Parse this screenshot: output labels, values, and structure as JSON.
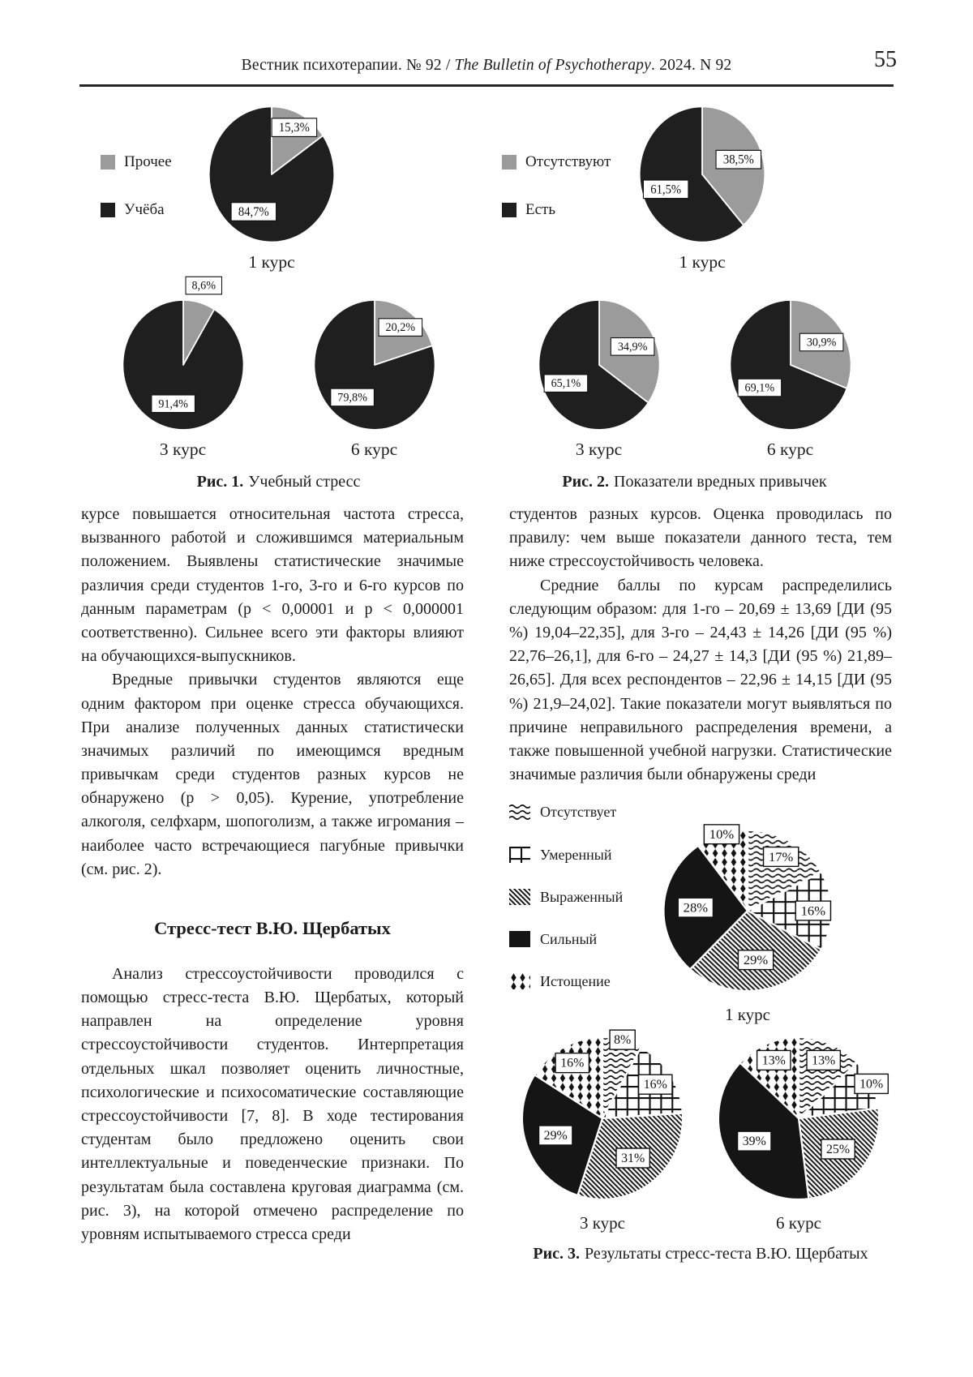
{
  "header": {
    "title_ru": "Вестник психотерапии. № 92  /",
    "title_en": "The Bulletin of Psychotherapy",
    "title_tail": ". 2024. N 92",
    "page_number": "55"
  },
  "chart_data": [
    {
      "type": "pie",
      "figure_label": "Рис. 1.",
      "figure_caption": "Учебный стресс",
      "units": "%",
      "legend_position": "left",
      "label_fs": 19,
      "palette": {
        "gray": "#9b9b9b",
        "black": "#1f1f1f"
      },
      "legend": [
        {
          "label": "Прочее",
          "fill": "gray"
        },
        {
          "label": "Учёба",
          "fill": "black"
        }
      ],
      "pies": [
        {
          "label": "1 курс",
          "slices": [
            {
              "name": "Прочее",
              "text": "15,3%",
              "value": 15.3,
              "fill": "gray"
            },
            {
              "name": "Учёба",
              "text": "84,7%",
              "value": 84.7,
              "fill": "black"
            }
          ]
        },
        {
          "label": "3 курс",
          "slices": [
            {
              "name": "Прочее",
              "text": "8,6%",
              "value": 8.6,
              "fill": "gray",
              "lr": 1.27
            },
            {
              "name": "Учёба",
              "text": "91,4%",
              "value": 91.4,
              "fill": "black"
            }
          ]
        },
        {
          "label": "6 курс",
          "slices": [
            {
              "name": "Прочее",
              "text": "20,2%",
              "value": 20.2,
              "fill": "gray",
              "lr": 0.72
            },
            {
              "name": "Учёба",
              "text": "79,8%",
              "value": 79.8,
              "fill": "black"
            }
          ]
        }
      ]
    },
    {
      "type": "pie",
      "figure_label": "Рис. 2.",
      "figure_caption": "Показатели вредных привычек",
      "units": "%",
      "legend_position": "left",
      "label_fs": 19,
      "palette": {
        "gray": "#9b9b9b",
        "black": "#1f1f1f"
      },
      "legend": [
        {
          "label": "Отсутствуют",
          "fill": "gray"
        },
        {
          "label": "Есть",
          "fill": "black"
        }
      ],
      "pies": [
        {
          "label": "1 курс",
          "slices": [
            {
              "name": "Отсутствуют",
              "text": "38,5%",
              "value": 38.5,
              "fill": "gray"
            },
            {
              "name": "Есть",
              "text": "61,5%",
              "value": 61.5,
              "fill": "black"
            }
          ]
        },
        {
          "label": "3 курс",
          "slices": [
            {
              "name": "Отсутствуют",
              "text": "34,9%",
              "value": 34.9,
              "fill": "gray"
            },
            {
              "name": "Есть",
              "text": "65,1%",
              "value": 65.1,
              "fill": "black"
            }
          ]
        },
        {
          "label": "6 курс",
          "slices": [
            {
              "name": "Отсутствуют",
              "text": "30,9%",
              "value": 30.9,
              "fill": "gray"
            },
            {
              "name": "Есть",
              "text": "69,1%",
              "value": 69.1,
              "fill": "black"
            }
          ]
        }
      ]
    },
    {
      "type": "pie",
      "figure_label": "Рис. 3.",
      "figure_caption": "Результаты стресс-теста В.Ю. Щербатых",
      "units": "%",
      "legend_position": "left",
      "label_fs": 16,
      "palette": {
        "solid": "#151515"
      },
      "legend": [
        {
          "label": "Отсутствует",
          "fill": "waves"
        },
        {
          "label": "Умеренный",
          "fill": "grid"
        },
        {
          "label": "Выраженный",
          "fill": "diag"
        },
        {
          "label": "Сильный",
          "fill": "solid"
        },
        {
          "label": "Истощение",
          "fill": "diamonds"
        }
      ],
      "pies": [
        {
          "label": "1 курс",
          "slices": [
            {
              "name": "Отсутствует",
              "text": "17%",
              "value": 17,
              "fill": "waves"
            },
            {
              "name": "Умеренный",
              "text": "16%",
              "value": 16,
              "fill": "grid"
            },
            {
              "name": "Выраженный",
              "text": "29%",
              "value": 29,
              "fill": "diag"
            },
            {
              "name": "Сильный",
              "text": "28%",
              "value": 28,
              "fill": "solid"
            },
            {
              "name": "Истощение",
              "text": "10%",
              "value": 10,
              "fill": "diamonds"
            }
          ]
        },
        {
          "label": "3 курс",
          "slices": [
            {
              "name": "Отсутствует",
              "text": "8%",
              "value": 8,
              "fill": "waves"
            },
            {
              "name": "Умеренный",
              "text": "16%",
              "value": 16,
              "fill": "grid"
            },
            {
              "name": "Выраженный",
              "text": "31%",
              "value": 31,
              "fill": "diag"
            },
            {
              "name": "Сильный",
              "text": "29%",
              "value": 29,
              "fill": "solid"
            },
            {
              "name": "Истощение",
              "text": "16%",
              "value": 16,
              "fill": "diamonds"
            }
          ]
        },
        {
          "label": "6 курс",
          "slices": [
            {
              "name": "Отсутствует",
              "text": "13%",
              "value": 13,
              "fill": "waves"
            },
            {
              "name": "Умеренный",
              "text": "10%",
              "value": 10,
              "fill": "grid"
            },
            {
              "name": "Выраженный",
              "text": "25%",
              "value": 25,
              "fill": "diag"
            },
            {
              "name": "Сильный",
              "text": "39%",
              "value": 39,
              "fill": "solid"
            },
            {
              "name": "Истощение",
              "text": "13%",
              "value": 13,
              "fill": "diamonds"
            }
          ]
        }
      ]
    }
  ],
  "body": {
    "left": {
      "p1": "курсе повышается относительная частота стресса, вызванного работой и сложившимся материальным положением. Выявлены статистические значимые различия среди студентов 1-го, 3-го и 6-го курсов по данным параметрам (p < 0,00001 и p < 0,000001 соответственно). Сильнее всего эти факторы влияют на обучающихся-выпускников.",
      "p2": "Вредные привычки студентов являются еще одним фактором при оценке стресса обучающихся. При анализе полученных данных статистически значимых различий по имеющимся вредным привычкам среди студентов разных курсов не обнаружено (p > 0,05). Курение, употребление алкоголя, селфхарм, шопоголизм, а также игромания – наиболее часто встречающиеся пагубные привычки (см. рис. 2).",
      "heading": "Стресс-тест В.Ю. Щербатых",
      "p3": "Анализ стрессоустойчивости проводился с помощью стресс-теста В.Ю. Щербатых, который направлен на определение уровня стрессоустойчивости студентов. Интерпретация отдельных шкал позволяет оценить личностные, психологические и психосоматические составляющие стрессоустойчивости [7, 8]. В ходе тестирования студентам было предложено оценить свои интеллектуальные и поведенческие признаки. По результатам была составлена круговая диаграмма (см. рис. 3), на которой отмечено распределение по уровням испытываемого стресса среди"
    },
    "right": {
      "p1": "студентов разных курсов. Оценка проводилась по правилу: чем выше показатели данного теста, тем ниже стрессоустойчивость человека.",
      "p2": "Средние баллы по курсам распределились следующим образом: для 1-го – 20,69 ± 13,69 [ДИ (95 %) 19,04–22,35], для 3-го – 24,43 ± 14,26 [ДИ (95 %) 22,76–26,1], для 6-го – 24,27 ± 14,3 [ДИ (95 %) 21,89–26,65]. Для всех респондентов – 22,96 ± 14,15 [ДИ (95 %) 21,9–24,02]. Такие показатели могут выявляться по причине неправильного распределения времени, а также повышенной учебной нагрузки. Статистические значимые различия были обнаружены среди"
    }
  }
}
